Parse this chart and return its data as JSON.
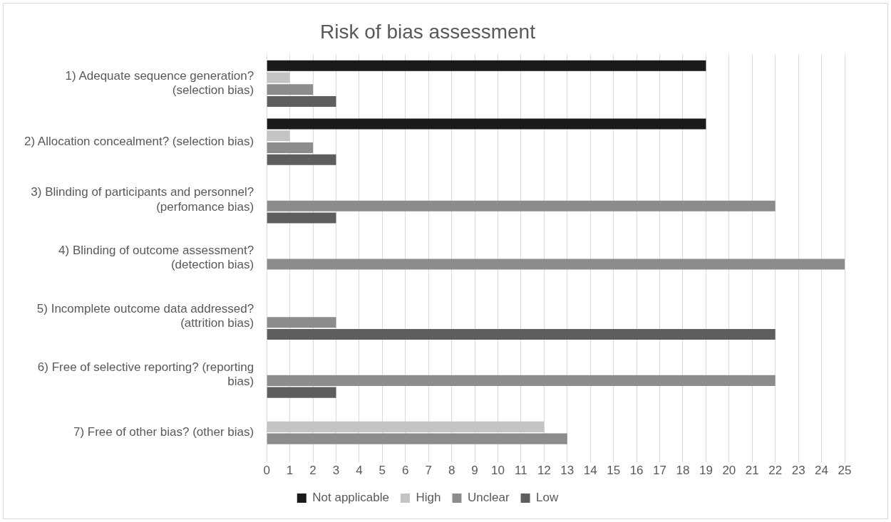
{
  "chart_data": {
    "type": "bar",
    "orientation": "horizontal",
    "title": "Risk of bias assessment",
    "categories": [
      "1) Adequate sequence generation? (selection bias)",
      "2) Allocation concealment? (selection bias)",
      "3) Blinding of participants and personnel? (perfomance bias)",
      "4) Blinding of outcome assessment? (detection bias)",
      "5) Incomplete outcome data addressed? (attrition bias)",
      "6) Free of selective reporting? (reporting bias)",
      "7) Free of other bias? (other bias)"
    ],
    "series": [
      {
        "name": "Not applicable",
        "color": "#1a1a1a",
        "values": [
          19,
          19,
          null,
          null,
          null,
          null,
          null
        ]
      },
      {
        "name": "High",
        "color": "#c4c4c4",
        "values": [
          1,
          1,
          null,
          null,
          null,
          null,
          12
        ]
      },
      {
        "name": "Unclear",
        "color": "#8c8c8c",
        "values": [
          2,
          2,
          22,
          25,
          3,
          22,
          13
        ]
      },
      {
        "name": "Low",
        "color": "#5e5e5e",
        "values": [
          3,
          3,
          3,
          null,
          22,
          3,
          null
        ]
      }
    ],
    "xlim": [
      0,
      25
    ],
    "xticks": [
      0,
      1,
      2,
      3,
      4,
      5,
      6,
      7,
      8,
      9,
      10,
      11,
      12,
      13,
      14,
      15,
      16,
      17,
      18,
      19,
      20,
      21,
      22,
      23,
      24,
      25
    ],
    "grid": "x",
    "legend": "bottom"
  }
}
